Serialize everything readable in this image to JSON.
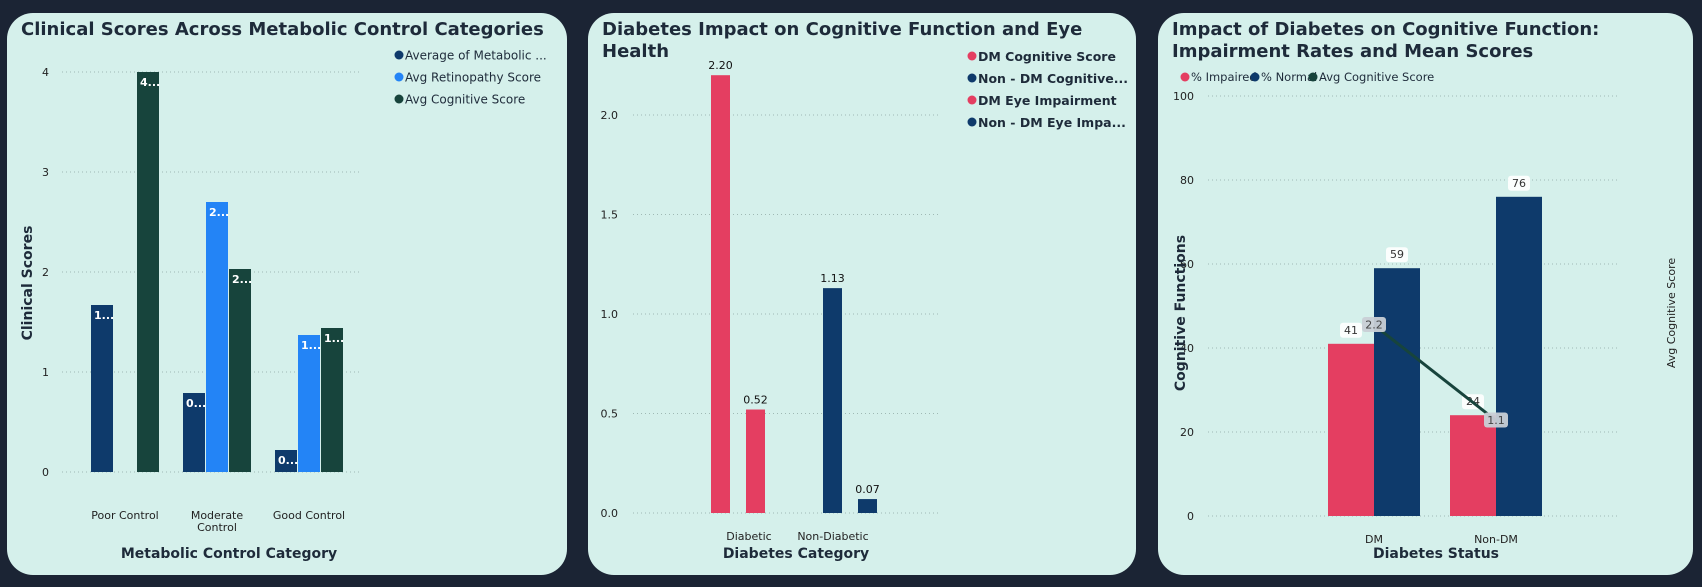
{
  "colors": {
    "page_bg": "#1b2434",
    "panel_bg": "#d5f0eb",
    "dark_blue": "#0e3a6b",
    "bright_blue": "#2384f6",
    "dark_green": "#17443c",
    "red": "#e43e61"
  },
  "charts": [
    {
      "title": "Clinical Scores Across Metabolic Control Categories",
      "chart_data": {
        "type": "bar",
        "categories": [
          "Poor Control",
          "Moderate Control",
          "Good Control"
        ],
        "series": [
          {
            "name": "Average of Metabolic ...",
            "color": "#0e3a6b",
            "values": [
              1.67,
              0.79,
              0.22
            ],
            "labels": [
              "1...",
              "0...",
              "0..."
            ]
          },
          {
            "name": "Avg Retinopathy Score",
            "color": "#2384f6",
            "values": [
              null,
              2.7,
              1.37
            ],
            "labels": [
              null,
              "2...",
              "1..."
            ]
          },
          {
            "name": "Avg Cognitive Score",
            "color": "#17443c",
            "values": [
              4.0,
              2.03,
              1.44
            ],
            "labels": [
              "4...",
              "2...",
              "1..."
            ]
          }
        ],
        "xlabel": "Metabolic Control Category",
        "ylabel": "Clinical Scores",
        "yticks": [
          "0",
          "1",
          "2",
          "3",
          "4"
        ],
        "ylim": [
          0,
          4.3
        ],
        "grid": true,
        "legend": "top-right"
      }
    },
    {
      "title": "Diabetes Impact on Cognitive Function and Eye Health",
      "chart_data": {
        "type": "bar",
        "categories": [
          "Diabetic",
          "Non-Diabetic"
        ],
        "series": [
          {
            "name": "DM Cognitive Score",
            "color": "#e43e61",
            "values": [
              2.2,
              null
            ],
            "labels": [
              "2.20",
              null
            ]
          },
          {
            "name": "Non - DM Cognitive...",
            "color": "#0e3a6b",
            "values": [
              null,
              1.13
            ],
            "labels": [
              null,
              "1.13"
            ]
          },
          {
            "name": "DM Eye Impairment",
            "color": "#e43e61",
            "values": [
              0.52,
              null
            ],
            "labels": [
              "0.52",
              null
            ]
          },
          {
            "name": "Non - DM Eye Impa...",
            "color": "#0e3a6b",
            "values": [
              null,
              0.07
            ],
            "labels": [
              null,
              "0.07"
            ]
          }
        ],
        "xlabel": "Diabetes Category",
        "ylabel": "",
        "yticks": [
          "0.0",
          "0.5",
          "1.0",
          "1.5",
          "2.0"
        ],
        "ylim": [
          0,
          2.3
        ],
        "grid": true,
        "legend": "top-right"
      }
    },
    {
      "title": "Impact of Diabetes on Cognitive Function: Impairment Rates and Mean Scores",
      "chart_data": {
        "type": "bar",
        "categories": [
          "DM",
          "Non-DM"
        ],
        "series": [
          {
            "name": "% Impaired",
            "color": "#e43e61",
            "values": [
              41,
              24
            ],
            "labels": [
              "41",
              "24"
            ]
          },
          {
            "name": "% Normal",
            "color": "#0e3a6b",
            "values": [
              59,
              76
            ],
            "labels": [
              "59",
              "76"
            ]
          },
          {
            "name": "Avg Cognitive Score",
            "color": "#17443c",
            "type": "line",
            "values": [
              2.2,
              1.1
            ],
            "labels": [
              "2.2",
              "1.1"
            ]
          }
        ],
        "xlabel": "Diabetes Status",
        "ylabel": "Cognitive Functions",
        "y2label": "Avg Cognitive Score",
        "yticks": [
          "0",
          "20",
          "40",
          "60",
          "80",
          "100"
        ],
        "ylim": [
          0,
          100
        ],
        "grid": true,
        "legend": "top-left"
      }
    }
  ]
}
